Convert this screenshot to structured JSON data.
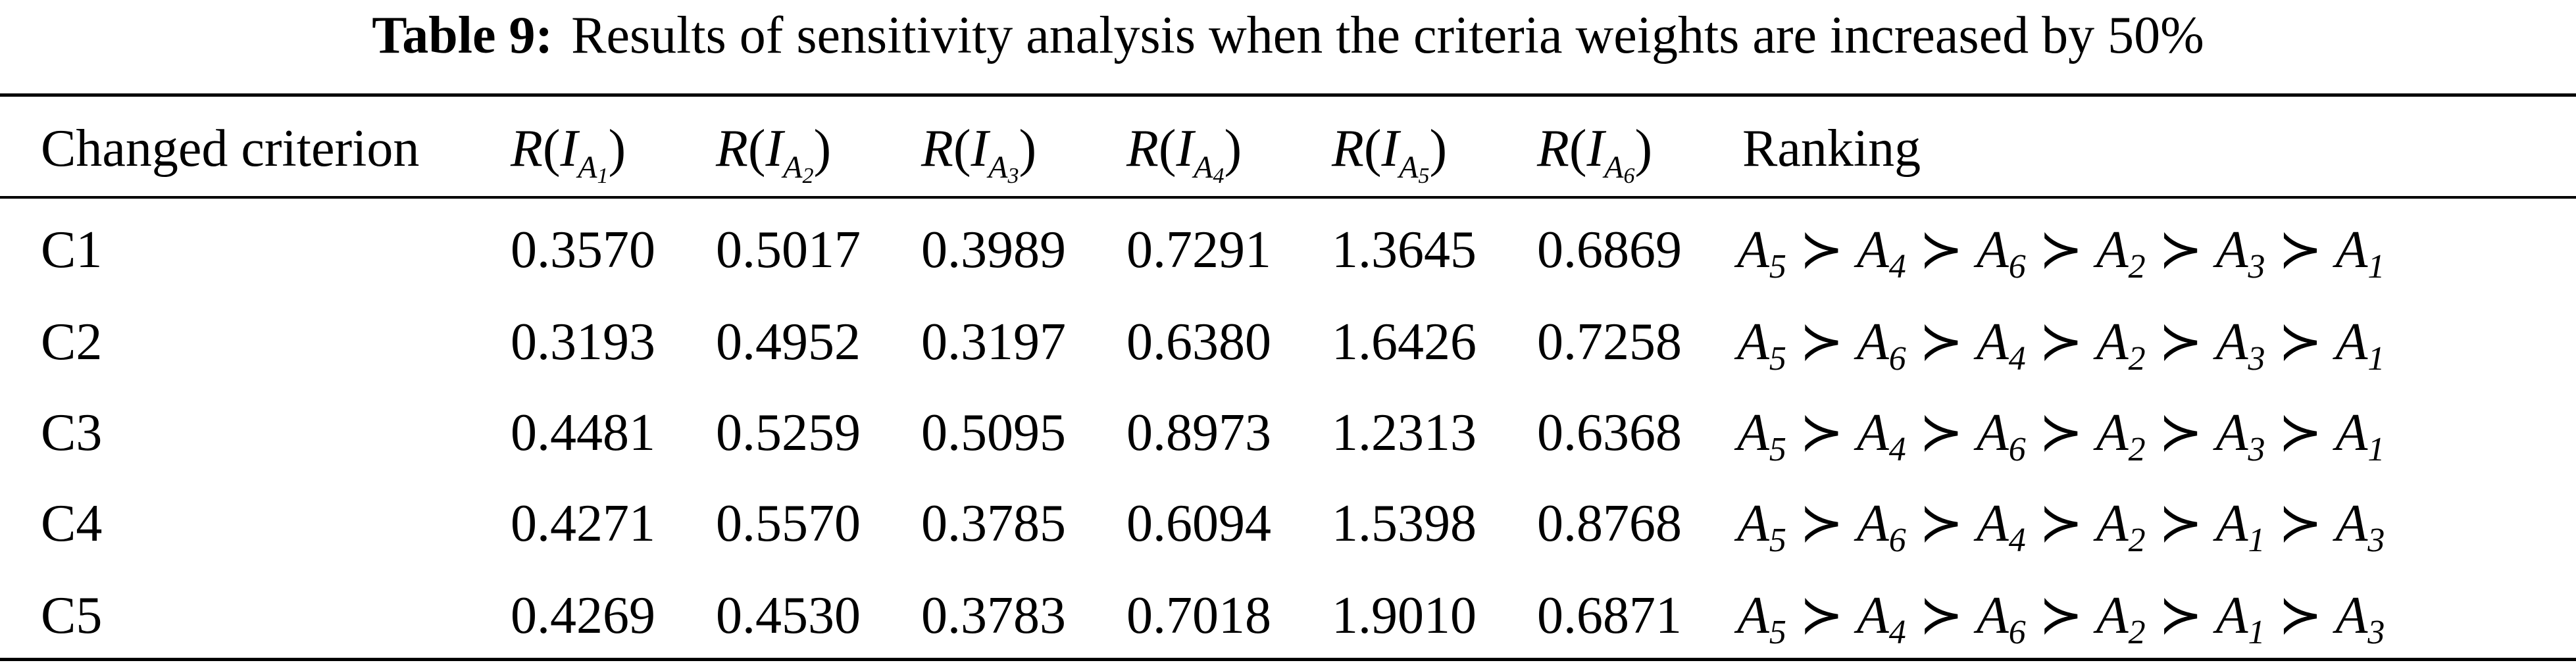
{
  "caption": {
    "label": "Table 9:",
    "text": "Results of sensitivity analysis when the criteria weights are increased by 50%"
  },
  "table": {
    "headers": {
      "changed_criterion": "Changed criterion",
      "r_cols": [
        {
          "prefix": "R(I",
          "sub_letter": "A",
          "sub_index": "1",
          "suffix": ")"
        },
        {
          "prefix": "R(I",
          "sub_letter": "A",
          "sub_index": "2",
          "suffix": ")"
        },
        {
          "prefix": "R(I",
          "sub_letter": "A",
          "sub_index": "3",
          "suffix": ")"
        },
        {
          "prefix": "R(I",
          "sub_letter": "A",
          "sub_index": "4",
          "suffix": ")"
        },
        {
          "prefix": "R(I",
          "sub_letter": "A",
          "sub_index": "5",
          "suffix": ")"
        },
        {
          "prefix": "R(I",
          "sub_letter": "A",
          "sub_index": "6",
          "suffix": ")"
        }
      ],
      "ranking": "Ranking"
    },
    "rows": [
      {
        "criterion": "C1",
        "values": [
          "0.3570",
          "0.5017",
          "0.3989",
          "0.7291",
          "1.3645",
          "0.6869"
        ],
        "ranking": [
          "5",
          "4",
          "6",
          "2",
          "3",
          "1"
        ]
      },
      {
        "criterion": "C2",
        "values": [
          "0.3193",
          "0.4952",
          "0.3197",
          "0.6380",
          "1.6426",
          "0.7258"
        ],
        "ranking": [
          "5",
          "6",
          "4",
          "2",
          "3",
          "1"
        ]
      },
      {
        "criterion": "C3",
        "values": [
          "0.4481",
          "0.5259",
          "0.5095",
          "0.8973",
          "1.2313",
          "0.6368"
        ],
        "ranking": [
          "5",
          "4",
          "6",
          "2",
          "3",
          "1"
        ]
      },
      {
        "criterion": "C4",
        "values": [
          "0.4271",
          "0.5570",
          "0.3785",
          "0.6094",
          "1.5398",
          "0.8768"
        ],
        "ranking": [
          "5",
          "6",
          "4",
          "2",
          "1",
          "3"
        ]
      },
      {
        "criterion": "C5",
        "values": [
          "0.4269",
          "0.4530",
          "0.3783",
          "0.7018",
          "1.9010",
          "0.6871"
        ],
        "ranking": [
          "5",
          "4",
          "6",
          "2",
          "1",
          "3"
        ]
      }
    ],
    "ranking_symbol": "≻",
    "ranking_letter": "A"
  }
}
